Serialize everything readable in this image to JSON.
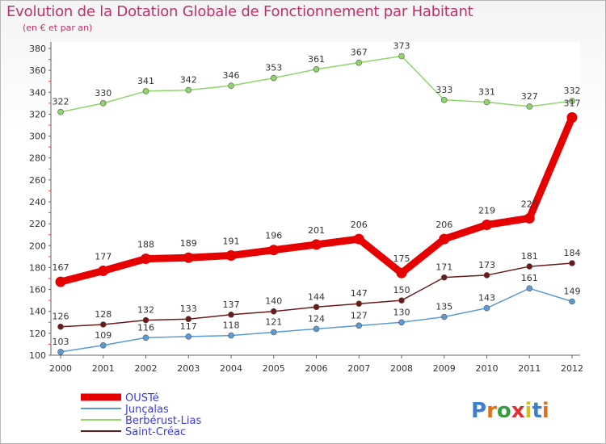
{
  "title": "Evolution de la Dotation Globale de Fonctionnement par Habitant",
  "subtitle": "(en € et par an)",
  "logo": {
    "text": "Proxiti"
  },
  "chart_data": {
    "type": "line",
    "x": [
      "2000",
      "2001",
      "2002",
      "2003",
      "2004",
      "2005",
      "2006",
      "2007",
      "2008",
      "2009",
      "2010",
      "2011",
      "2012"
    ],
    "ylim": [
      100,
      380
    ],
    "yticks": [
      100,
      120,
      140,
      160,
      180,
      200,
      220,
      240,
      260,
      280,
      300,
      320,
      340,
      360,
      380
    ],
    "grid": false,
    "legend_placement": "bottom-left",
    "series": [
      {
        "name": "OUSTé",
        "color": "#e60000",
        "values": [
          167,
          177,
          188,
          189,
          191,
          196,
          201,
          206,
          175,
          206,
          219,
          225,
          317
        ]
      },
      {
        "name": "Junçalas",
        "color": "#5b9bd5",
        "values": [
          103,
          109,
          116,
          117,
          118,
          121,
          124,
          127,
          130,
          135,
          143,
          161,
          149
        ]
      },
      {
        "name": "Berbérust-Lias",
        "color": "#8fd66a",
        "values": [
          322,
          330,
          341,
          342,
          346,
          353,
          361,
          367,
          373,
          333,
          331,
          327,
          332
        ]
      },
      {
        "name": "Saint-Créac",
        "color": "#6b1a1a",
        "values": [
          126,
          128,
          132,
          133,
          137,
          140,
          144,
          147,
          150,
          171,
          173,
          181,
          184
        ]
      }
    ]
  }
}
